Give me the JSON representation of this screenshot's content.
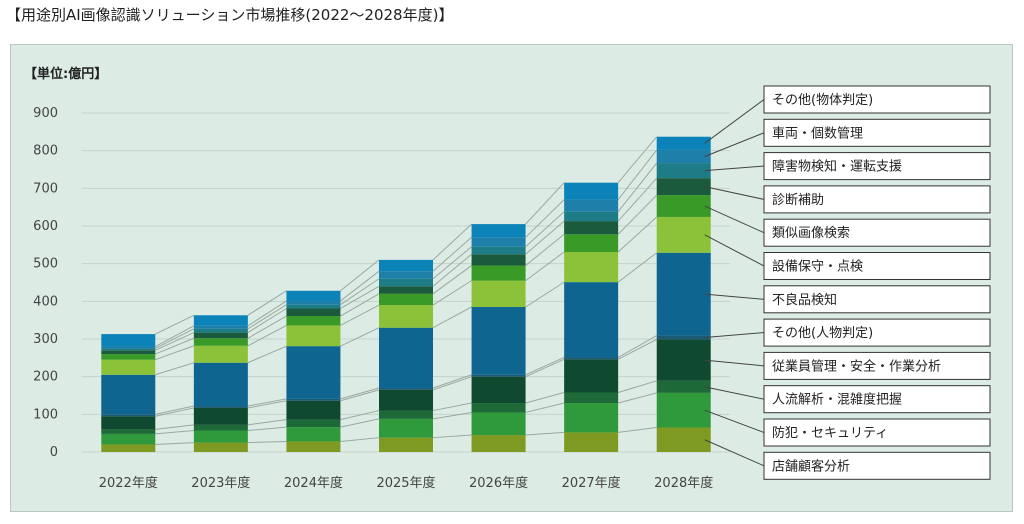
{
  "page_title": "【用途別AI画像認識ソリューション市場推移(2022〜2028年度)】",
  "chart_data": {
    "type": "bar",
    "stacked": true,
    "unit_label": "【単位:億円】",
    "categories": [
      "2022年度",
      "2023年度",
      "2024年度",
      "2025年度",
      "2026年度",
      "2027年度",
      "2028年度"
    ],
    "ylim": [
      0,
      900
    ],
    "yticks": [
      0,
      100,
      200,
      300,
      400,
      500,
      600,
      700,
      800,
      900
    ],
    "grid": true,
    "legend_position": "right",
    "series": [
      {
        "name": "店舗顧客分析",
        "color": "#7f9a22",
        "values": [
          20,
          25,
          28,
          38,
          45,
          52,
          65
        ]
      },
      {
        "name": "防犯・セキュリティ",
        "color": "#2e9a3c",
        "values": [
          28,
          32,
          38,
          50,
          60,
          78,
          92
        ]
      },
      {
        "name": "人流解析・混雑度把握",
        "color": "#1d6a38",
        "values": [
          12,
          15,
          20,
          22,
          25,
          28,
          32
        ]
      },
      {
        "name": "従業員管理・安全・作業分析",
        "color": "#0f4a30",
        "values": [
          35,
          45,
          50,
          55,
          70,
          88,
          110
        ]
      },
      {
        "name": "その他(人物判定)",
        "color": "#1a5a74",
        "values": [
          5,
          5,
          5,
          5,
          5,
          5,
          10
        ]
      },
      {
        "name": "不良品検知",
        "color": "#0e6590",
        "values": [
          105,
          115,
          140,
          160,
          180,
          200,
          220
        ]
      },
      {
        "name": "設備保守・点検",
        "color": "#8cc23a",
        "values": [
          40,
          45,
          55,
          60,
          70,
          80,
          95
        ]
      },
      {
        "name": "類似画像検索",
        "color": "#3a9a28",
        "values": [
          15,
          20,
          25,
          30,
          40,
          47,
          58
        ]
      },
      {
        "name": "診断補助",
        "color": "#1b5a3c",
        "values": [
          10,
          15,
          20,
          20,
          30,
          35,
          45
        ]
      },
      {
        "name": "障害物検知・運転支援",
        "color": "#1d7c86",
        "values": [
          5,
          10,
          10,
          20,
          20,
          25,
          40
        ]
      },
      {
        "name": "車両・個数管理",
        "color": "#1e7fa8",
        "values": [
          5,
          8,
          10,
          20,
          25,
          32,
          35
        ]
      },
      {
        "name": "その他(物体判定)",
        "color": "#0b82b8",
        "values": [
          33,
          28,
          27,
          30,
          35,
          45,
          35
        ]
      }
    ]
  }
}
